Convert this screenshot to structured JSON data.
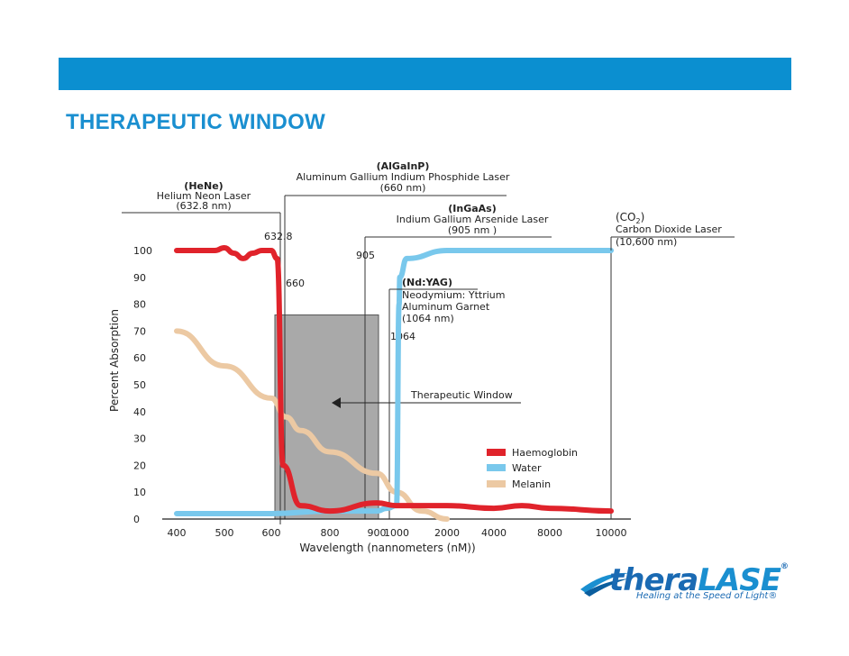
{
  "slide": {
    "title": "THERAPEUTIC WINDOW",
    "accent_color": "#0b8fd0"
  },
  "logo": {
    "word_part1": "thera",
    "word_part2": "LASE",
    "registered": "®",
    "tagline": "Healing at the Speed of Light®"
  },
  "chart_data": {
    "type": "line",
    "xlabel": "Wavelength (nannometers (nM))",
    "ylabel": "Percent Absorption",
    "x_ticks": [
      "400",
      "500",
      "600",
      "800",
      "900",
      "1000",
      "2000",
      "4000",
      "8000",
      "10000"
    ],
    "y_ticks": [
      "0",
      "10",
      "20",
      "30",
      "40",
      "50",
      "60",
      "70",
      "80",
      "90",
      "100"
    ],
    "ylim": [
      0,
      100
    ],
    "legend_position": "lower-right",
    "series": [
      {
        "name": "Haemoglobin",
        "color": "#e0232b",
        "x": [
          "400",
          "450",
          "480",
          "500",
          "520",
          "540",
          "560",
          "580",
          "600",
          "620",
          "640",
          "700",
          "800",
          "900",
          "1000",
          "2000",
          "4000",
          "6000",
          "8000",
          "10000"
        ],
        "values": [
          100,
          100,
          100,
          101,
          99,
          97,
          99,
          100,
          100,
          97,
          20,
          5,
          3,
          6,
          5,
          5,
          4,
          5,
          4,
          3
        ]
      },
      {
        "name": "Water",
        "color": "#79c8ec",
        "x": [
          "400",
          "600",
          "800",
          "900",
          "950",
          "1000",
          "1050",
          "1064",
          "1200",
          "2000",
          "4000",
          "8000",
          "10000"
        ],
        "values": [
          2,
          2,
          3,
          3,
          4,
          5,
          80,
          90,
          97,
          100,
          100,
          100,
          100
        ]
      },
      {
        "name": "Melanin",
        "color": "#ecc9a3",
        "x": [
          "400",
          "500",
          "600",
          "650",
          "700",
          "800",
          "900",
          "1000",
          "1500",
          "2000"
        ],
        "values": [
          70,
          57,
          45,
          38,
          33,
          25,
          17,
          10,
          3,
          0
        ]
      }
    ],
    "markers": [
      {
        "value": "632.8",
        "label": "632.8"
      },
      {
        "value": "660",
        "label": "660"
      },
      {
        "value": "905",
        "label": "905"
      },
      {
        "value": "1064",
        "label": "1064"
      }
    ],
    "therapeutic_window": {
      "label": "Therapeutic Window",
      "x_from": "600",
      "x_to": "950",
      "y_top": 76
    },
    "lasers": [
      {
        "abbr": "(HeNe)",
        "name": "Helium Neon Laser",
        "wavelength": "(632.8 nm)"
      },
      {
        "abbr": "(AlGaInP)",
        "name": "Aluminum Gallium Indium Phosphide Laser",
        "wavelength": "(660 nm)"
      },
      {
        "abbr": "(InGaAs)",
        "name": "Indium Gallium Arsenide Laser",
        "wavelength": "(905 nm )"
      },
      {
        "abbr": "(CO",
        "abbr_sub": "2",
        "abbr_end": ")",
        "name": "Carbon Dioxide Laser",
        "wavelength": "(10,600 nm)"
      },
      {
        "abbr": "(Nd:YAG)",
        "name_line1": "Neodymium: Yttrium",
        "name_line2": "Aluminum Garnet",
        "wavelength": "(1064 nm)"
      }
    ]
  }
}
